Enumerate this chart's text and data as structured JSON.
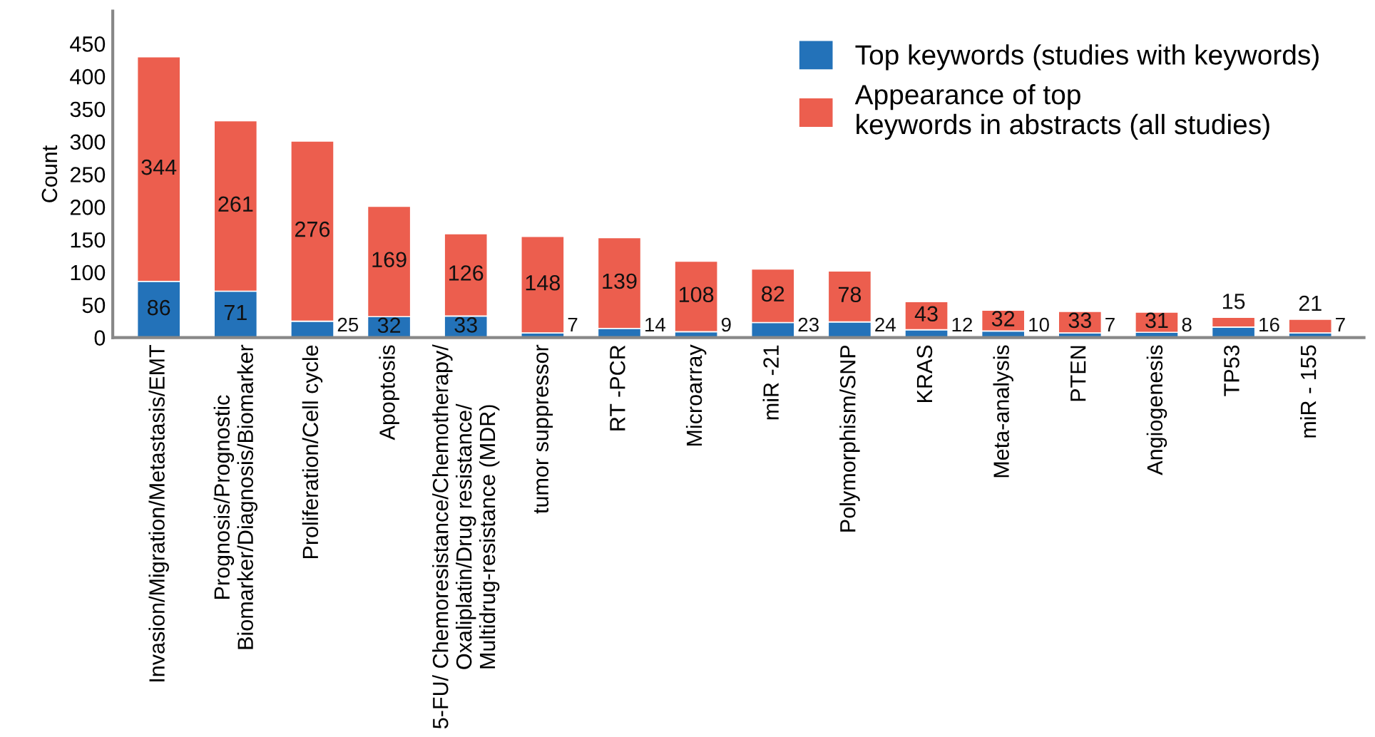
{
  "chart_data": {
    "type": "bar",
    "stacked": true,
    "ylabel": "Count",
    "categories": [
      "Invasion/Migration/Metastasis/EMT",
      "Prognosis/Prognostic\nBiomarker/Diagnosis/Biomarker",
      "Proliferation/Cell cycle",
      "Apoptosis",
      "5-FU/ Chemoresistance/Chemotherapy/\nOxaliplatin/Drug resistance/\nMultidrug-resistance (MDR)",
      "tumor suppressor",
      "RT -PCR",
      "Microarray",
      "miR -21",
      "Polymorphism/SNP",
      "KRAS",
      "Meta-analysis",
      "PTEN",
      "Angiogenesis",
      "TP53",
      "miR - 155"
    ],
    "series": [
      {
        "name": "Top keywords (studies with keywords)",
        "color": "#2372b9",
        "values": [
          86,
          71,
          25,
          32,
          33,
          7,
          14,
          9,
          23,
          24,
          12,
          10,
          7,
          8,
          16,
          7
        ]
      },
      {
        "name": "Appearance of top\nkeywords in abstracts (all studies)",
        "color": "#ec5e4e",
        "values": [
          344,
          261,
          276,
          169,
          126,
          148,
          139,
          108,
          82,
          78,
          43,
          32,
          33,
          31,
          15,
          21
        ]
      }
    ],
    "ylim": [
      0,
      500
    ],
    "yticks": [
      0,
      50,
      100,
      150,
      200,
      250,
      300,
      350,
      400,
      450
    ],
    "data_labels": true,
    "grid": false,
    "legend": "top right"
  }
}
